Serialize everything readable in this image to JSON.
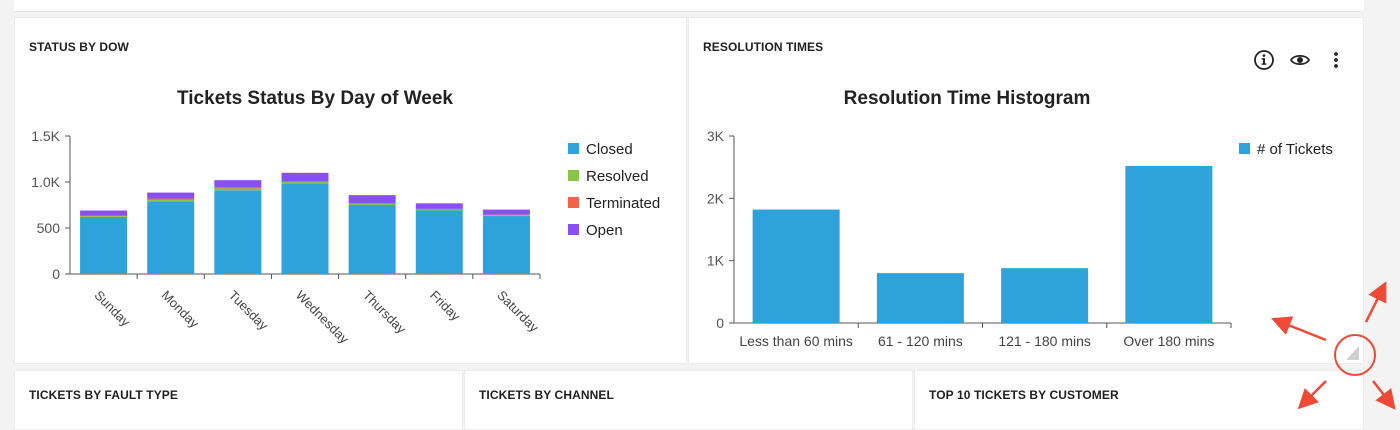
{
  "status_panel": {
    "title": "STATUS BY DOW",
    "chart_data": {
      "type": "bar",
      "stacked": true,
      "title": "Tickets Status By Day of Week",
      "xlabel": "",
      "ylabel": "",
      "categories": [
        "Sunday",
        "Monday",
        "Tuesday",
        "Wednesday",
        "Thursday",
        "Friday",
        "Saturday"
      ],
      "series": [
        {
          "name": "Closed",
          "color": "#2ea2da",
          "values": [
            620,
            790,
            910,
            985,
            750,
            690,
            630
          ]
        },
        {
          "name": "Resolved",
          "color": "#8bc34a",
          "values": [
            10,
            15,
            20,
            15,
            12,
            10,
            10
          ]
        },
        {
          "name": "Terminated",
          "color": "#f4614a",
          "values": [
            5,
            15,
            15,
            10,
            10,
            8,
            5
          ]
        },
        {
          "name": "Open",
          "color": "#8a4ff0",
          "values": [
            55,
            65,
            75,
            90,
            85,
            60,
            55
          ]
        }
      ],
      "ylim": [
        0,
        1500
      ],
      "yticks": [
        {
          "value": 0,
          "label": "0"
        },
        {
          "value": 500,
          "label": "500"
        },
        {
          "value": 1000,
          "label": "1.0K"
        },
        {
          "value": 1500,
          "label": "1.5K"
        }
      ],
      "legend_position": "right",
      "grid": false
    }
  },
  "resolution_panel": {
    "title": "RESOLUTION TIMES",
    "icons": {
      "info": "info-icon",
      "view": "eye-icon",
      "menu": "more-vertical-icon"
    },
    "chart_data": {
      "type": "bar",
      "title": "Resolution Time Histogram",
      "xlabel": "",
      "ylabel": "",
      "categories": [
        "Less than 60 mins",
        "61 - 120 mins",
        "121 - 180 mins",
        "Over 180 mins"
      ],
      "series": [
        {
          "name": "# of Tickets",
          "color": "#2ea2da",
          "values": [
            1820,
            800,
            880,
            2520
          ]
        }
      ],
      "ylim": [
        0,
        3000
      ],
      "yticks": [
        {
          "value": 0,
          "label": "0"
        },
        {
          "value": 1000,
          "label": "1K"
        },
        {
          "value": 2000,
          "label": "2K"
        },
        {
          "value": 3000,
          "label": "3K"
        }
      ],
      "legend_position": "top-right",
      "grid": false
    }
  },
  "bottom_panels": [
    {
      "title": "TICKETS BY FAULT TYPE"
    },
    {
      "title": "TICKETS BY CHANNEL"
    },
    {
      "title": "TOP 10 TICKETS BY CUSTOMER"
    }
  ],
  "annotation": {
    "color": "#ee4a36",
    "shape": "resize-handle-arrows"
  }
}
